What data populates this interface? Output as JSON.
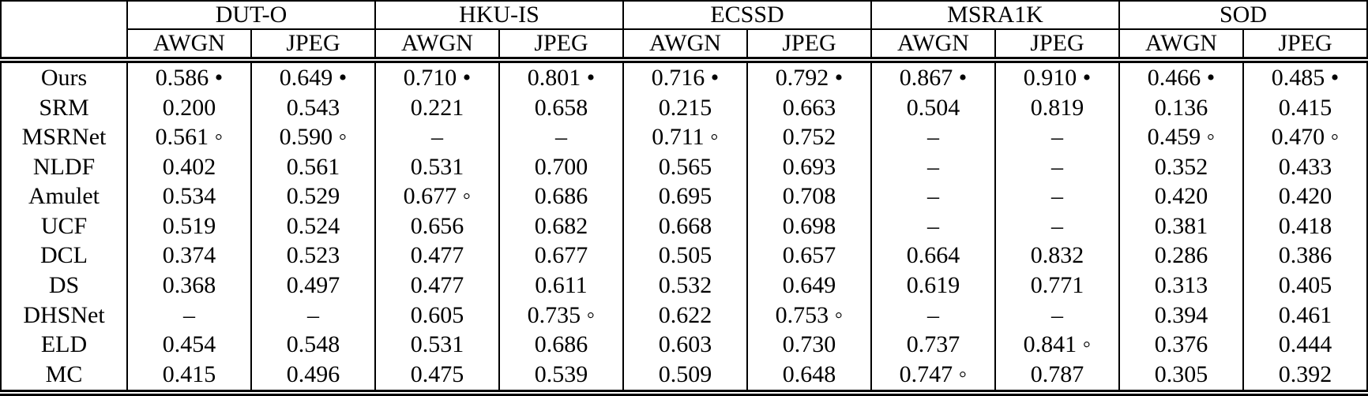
{
  "table": {
    "corner_label": "",
    "datasets": [
      "DUT-O",
      "HKU-IS",
      "ECSSD",
      "MSRA1K",
      "SOD"
    ],
    "conditions": [
      "AWGN",
      "JPEG"
    ],
    "legend": {
      "best_marker": "•",
      "second_best_marker": "◦",
      "missing_marker": "–"
    },
    "rows": [
      {
        "method": "Ours",
        "cells": [
          "0.586 •",
          "0.649 •",
          "0.710 •",
          "0.801 •",
          "0.716 •",
          "0.792 •",
          "0.867 •",
          "0.910 •",
          "0.466 •",
          "0.485 •"
        ]
      },
      {
        "method": "SRM",
        "cells": [
          "0.200",
          "0.543",
          "0.221",
          "0.658",
          "0.215",
          "0.663",
          "0.504",
          "0.819",
          "0.136",
          "0.415"
        ]
      },
      {
        "method": "MSRNet",
        "cells": [
          "0.561 ◦",
          "0.590 ◦",
          "–",
          "–",
          "0.711 ◦",
          "0.752",
          "–",
          "–",
          "0.459 ◦",
          "0.470 ◦"
        ]
      },
      {
        "method": "NLDF",
        "cells": [
          "0.402",
          "0.561",
          "0.531",
          "0.700",
          "0.565",
          "0.693",
          "–",
          "–",
          "0.352",
          "0.433"
        ]
      },
      {
        "method": "Amulet",
        "cells": [
          "0.534",
          "0.529",
          "0.677 ◦",
          "0.686",
          "0.695",
          "0.708",
          "–",
          "–",
          "0.420",
          "0.420"
        ]
      },
      {
        "method": "UCF",
        "cells": [
          "0.519",
          "0.524",
          "0.656",
          "0.682",
          "0.668",
          "0.698",
          "–",
          "–",
          "0.381",
          "0.418"
        ]
      },
      {
        "method": "DCL",
        "cells": [
          "0.374",
          "0.523",
          "0.477",
          "0.677",
          "0.505",
          "0.657",
          "0.664",
          "0.832",
          "0.286",
          "0.386"
        ]
      },
      {
        "method": "DS",
        "cells": [
          "0.368",
          "0.497",
          "0.477",
          "0.611",
          "0.532",
          "0.649",
          "0.619",
          "0.771",
          "0.313",
          "0.405"
        ]
      },
      {
        "method": "DHSNet",
        "cells": [
          "–",
          "–",
          "0.605",
          "0.735 ◦",
          "0.622",
          "0.753 ◦",
          "–",
          "–",
          "0.394",
          "0.461"
        ]
      },
      {
        "method": "ELD",
        "cells": [
          "0.454",
          "0.548",
          "0.531",
          "0.686",
          "0.603",
          "0.730",
          "0.737",
          "0.841 ◦",
          "0.376",
          "0.444"
        ]
      },
      {
        "method": "MC",
        "cells": [
          "0.415",
          "0.496",
          "0.475",
          "0.539",
          "0.509",
          "0.648",
          "0.747 ◦",
          "0.787",
          "0.305",
          "0.392"
        ]
      }
    ]
  }
}
